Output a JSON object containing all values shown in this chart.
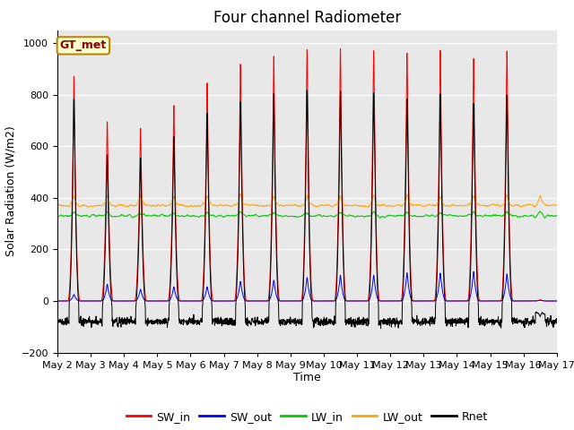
{
  "title": "Four channel Radiometer",
  "xlabel": "Time",
  "ylabel": "Solar Radiation (W/m2)",
  "station_label": "GT_met",
  "ylim": [
    -200,
    1050
  ],
  "xlim_days": [
    2,
    17
  ],
  "x_tick_labels": [
    "May 2",
    "May 3",
    "May 4",
    "May 5",
    "May 6",
    "May 7",
    "May 8",
    "May 9",
    "May 10",
    "May 11",
    "May 12",
    "May 13",
    "May 14",
    "May 15",
    "May 16",
    "May 17"
  ],
  "colors": {
    "SW_in": "#ff0000",
    "SW_out": "#0000ff",
    "LW_in": "#00cc00",
    "LW_out": "#ffa500",
    "Rnet": "#000000"
  },
  "background_color": "#e8e8e8",
  "fig_background": "#ffffff",
  "SW_in_daily_peaks": [
    860,
    700,
    670,
    760,
    850,
    900,
    940,
    960,
    975,
    975,
    975,
    975,
    965,
    975,
    5
  ],
  "SW_out_daily_peaks": [
    25,
    65,
    45,
    55,
    55,
    75,
    80,
    90,
    100,
    100,
    110,
    108,
    115,
    105,
    3
  ],
  "LW_in_base": 330,
  "LW_out_base": 370,
  "Rnet_night": -80,
  "days": 15,
  "pts_per_day": 144,
  "title_fontsize": 12,
  "label_fontsize": 9,
  "tick_fontsize": 8,
  "legend_fontsize": 9
}
